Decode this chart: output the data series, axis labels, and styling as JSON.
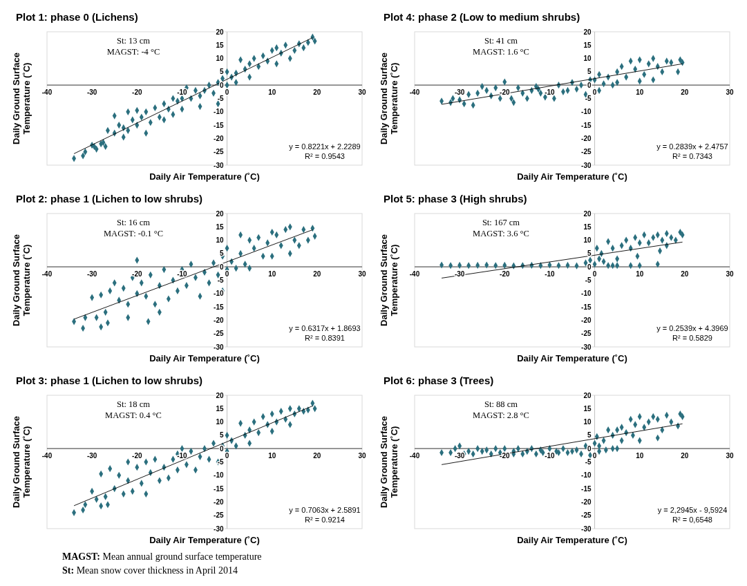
{
  "chart_data": [
    {
      "type": "scatter",
      "title": "Plot 1: phase 0 (Lichens)",
      "xlabel": "Daily Air Temperature (˚C)",
      "ylabel": "Daily Ground Surface Temperature (˚C)",
      "xlim": [
        -40,
        30
      ],
      "xticks": [
        -40,
        -30,
        -20,
        -10,
        0,
        10,
        20,
        30
      ],
      "ylim": [
        -30,
        20
      ],
      "yticks": [
        -30,
        -25,
        -20,
        -15,
        -10,
        -5,
        0,
        5,
        10,
        15,
        20
      ],
      "annotations": [
        "St: 13 cm",
        "MAGST: -4 °C",
        "y = 0.8221x + 2.2289",
        "R² = 0.9543"
      ],
      "series": [
        {
          "type": "scatter",
          "color": "#2b6f7e",
          "marker": "diamond",
          "x": [
            -34,
            -32,
            -31.5,
            -30,
            -29.5,
            -29,
            -28,
            -27.5,
            -27,
            -26.5,
            -25,
            -25,
            -24,
            -23,
            -23,
            -22,
            -22,
            -21,
            -20,
            -20,
            -19,
            -18,
            -18,
            -17,
            -16,
            -15,
            -14,
            -14,
            -13,
            -12,
            -12,
            -11,
            -10,
            -10,
            -9,
            -8,
            -7,
            -6,
            -6,
            -5,
            -4,
            -3,
            -2,
            -2,
            -1,
            0,
            0,
            1,
            2,
            2,
            3,
            4,
            5,
            5,
            6,
            7,
            8,
            9,
            10,
            11,
            11,
            12,
            13,
            14,
            15,
            16,
            17,
            18,
            19,
            19.5
          ],
          "values": [
            -27.5,
            -26.5,
            -25,
            -22.5,
            -23,
            -24,
            -22,
            -21.5,
            -23,
            -17,
            -11.5,
            -18,
            -15,
            -16,
            -19.5,
            -10,
            -17,
            -13,
            -9.5,
            -15,
            -12,
            -18,
            -10,
            -14,
            -8.5,
            -12,
            -7,
            -13,
            -9,
            -5,
            -11,
            -6,
            -9,
            -5,
            -1,
            -5,
            -2,
            -8,
            -4,
            -2,
            0,
            -3,
            -7,
            1,
            2.5,
            5,
            0,
            3,
            1,
            4.5,
            9.5,
            6,
            3,
            8,
            10,
            7,
            11,
            9,
            13,
            8,
            14,
            12,
            15,
            10,
            13,
            15.5,
            14,
            16,
            18,
            16.5
          ]
        },
        {
          "type": "line",
          "color": "#000000",
          "marker": "none",
          "x": [
            -34,
            19
          ],
          "values": [
            -25.7,
            17.8
          ]
        }
      ]
    },
    {
      "type": "scatter",
      "title": "Plot 4: phase 2 (Low to medium shrubs)",
      "xlabel": "Daily Air Temperature (˚C)",
      "ylabel": "Daily Ground Surface Temperature (˚C)",
      "xlim": [
        -40,
        30
      ],
      "xticks": [
        -40,
        -30,
        -20,
        -10,
        0,
        10,
        20,
        30
      ],
      "ylim": [
        -30,
        20
      ],
      "yticks": [
        -30,
        -25,
        -20,
        -15,
        -10,
        -5,
        0,
        5,
        10,
        15,
        20
      ],
      "annotations": [
        "St: 41 cm",
        "MAGST: 1.6 °C",
        "y = 0.2839x + 2.4757",
        "R² = 0.7343"
      ],
      "series": [
        {
          "type": "scatter",
          "color": "#2b6f7e",
          "marker": "diamond",
          "x": [
            -34,
            -32,
            -31.5,
            -30,
            -29,
            -28,
            -27,
            -26,
            -25,
            -24,
            -23,
            -22,
            -21,
            -20,
            -18.5,
            -18,
            -17,
            -16,
            -15,
            -14,
            -13,
            -12,
            -11,
            -12.5,
            -9,
            -8,
            -7,
            -6,
            -5,
            -4,
            -3,
            -2,
            -1,
            0,
            1,
            1,
            2,
            3,
            4,
            5,
            5,
            6,
            7,
            8,
            9,
            10,
            10,
            11,
            12,
            13,
            13,
            14,
            15,
            16,
            17,
            18.5,
            19,
            19.5
          ],
          "values": [
            -6,
            -6.5,
            -5,
            -5.5,
            -7,
            -3.5,
            -7.5,
            -3,
            -0.5,
            -2,
            -4,
            -1,
            -5,
            1.2,
            -5,
            -6.5,
            -1,
            -3,
            -5,
            -2,
            -0.5,
            -3,
            -4.5,
            -1.5,
            -5,
            0,
            -2.5,
            -2,
            1,
            -1.5,
            0,
            -3.5,
            2,
            2,
            -2,
            4,
            0.5,
            3,
            0,
            5,
            1,
            7,
            3,
            9,
            6,
            1.5,
            9.5,
            4,
            8,
            2,
            10,
            7,
            5,
            9,
            8.5,
            5,
            9.5,
            8.5
          ]
        },
        {
          "type": "line",
          "color": "#000000",
          "marker": "none",
          "x": [
            -34,
            19.5
          ],
          "values": [
            -7.2,
            8
          ]
        }
      ]
    },
    {
      "type": "scatter",
      "title": "Plot 2: phase 1 (Lichen to low shrubs)",
      "xlabel": "Daily Air Temperature (˚C)",
      "ylabel": "Daily Ground Surface Temperature (˚C)",
      "xlim": [
        -40,
        30
      ],
      "xticks": [
        -40,
        -30,
        -20,
        -10,
        0,
        10,
        20,
        30
      ],
      "ylim": [
        -30,
        20
      ],
      "yticks": [
        -30,
        -25,
        -20,
        -15,
        -10,
        -5,
        0,
        5,
        10,
        15,
        20
      ],
      "annotations": [
        "St: 16 cm",
        "MAGST: -0.1 °C",
        "y = 0.6317x + 1.8693",
        "R² = 0.8391"
      ],
      "series": [
        {
          "type": "scatter",
          "color": "#2b6f7e",
          "marker": "diamond",
          "x": [
            -34,
            -32,
            -31.5,
            -30,
            -29,
            -28,
            -28,
            -27,
            -26.5,
            -26,
            -25,
            -24,
            -23,
            -22,
            -22,
            -21,
            -20,
            -20,
            -19,
            -18,
            -17.5,
            -17,
            -16,
            -15,
            -15,
            -14,
            -13,
            -12,
            -11,
            -10,
            -9,
            -8,
            -7,
            -6,
            -5,
            -4,
            -3,
            -2,
            -1,
            -1,
            0,
            0,
            1,
            2,
            3,
            3,
            4,
            5,
            5,
            6,
            7,
            8,
            9,
            10,
            10,
            11,
            12,
            13,
            14,
            14,
            15,
            16,
            17,
            18,
            19,
            19.5
          ],
          "values": [
            -20.5,
            -23,
            -19,
            -11.5,
            -19,
            -10.5,
            -22.5,
            -17,
            -21,
            -9,
            -6,
            -12.5,
            -8,
            -19,
            -14,
            -4,
            -10,
            2.5,
            -6,
            -11,
            -20.5,
            -3,
            -14,
            -17,
            -7,
            -1,
            -12,
            -5,
            -9,
            -1,
            -7,
            1,
            -4,
            -11,
            -2,
            -6,
            1.5,
            -3,
            -9,
            4,
            -1,
            7,
            2,
            -0.5,
            12,
            5,
            1,
            10,
            -0.5,
            7,
            11,
            4,
            9,
            13,
            4,
            12,
            8,
            14,
            5,
            15,
            10,
            8,
            14,
            10,
            14.5,
            11.5
          ]
        },
        {
          "type": "line",
          "color": "#000000",
          "marker": "none",
          "x": [
            -34,
            19
          ],
          "values": [
            -19.6,
            13.9
          ]
        }
      ]
    },
    {
      "type": "scatter",
      "title": "Plot 5: phase 3 (High shrubs)",
      "xlabel": "Daily Air Temperature (˚C)",
      "ylabel": "Daily Ground Surface Temperature (˚C)",
      "xlim": [
        -40,
        30
      ],
      "xticks": [
        -40,
        -30,
        -20,
        -10,
        0,
        10,
        20,
        30
      ],
      "ylim": [
        -30,
        20
      ],
      "yticks": [
        -30,
        -25,
        -20,
        -15,
        -10,
        -5,
        0,
        5,
        10,
        15,
        20
      ],
      "annotations": [
        "St: 167 cm",
        "MAGST: 3.6 °C",
        "y = 0.2539x + 4.3969",
        "R² = 0.5829"
      ],
      "series": [
        {
          "type": "scatter",
          "color": "#2b6f7e",
          "marker": "diamond",
          "x": [
            -34,
            -32,
            -30,
            -28,
            -26,
            -24,
            -22,
            -20,
            -18,
            -16,
            -14,
            -12,
            -10,
            -8,
            -6,
            -4,
            -2,
            -1,
            0,
            0.5,
            1,
            1.5,
            2,
            3,
            3,
            4,
            4,
            5,
            5,
            6,
            7,
            8,
            8,
            9,
            9.5,
            10,
            10,
            11,
            12,
            13,
            14,
            14,
            14.5,
            15,
            16,
            16,
            17,
            18,
            19,
            19.5
          ],
          "values": [
            0.7,
            0.5,
            0.6,
            0.5,
            0.6,
            0.7,
            0.5,
            0.6,
            0.4,
            0.5,
            0.6,
            0.5,
            0.7,
            0.5,
            0.6,
            0.4,
            1.5,
            2.5,
            1,
            7,
            3,
            5,
            2,
            9.5,
            0.5,
            7,
            0.5,
            3,
            0.5,
            8,
            10,
            7,
            0.5,
            11,
            4,
            9,
            0.5,
            12,
            9,
            11,
            1,
            12,
            6,
            10,
            8,
            12.5,
            11,
            10,
            13,
            12
          ]
        },
        {
          "type": "line",
          "color": "#000000",
          "marker": "none",
          "x": [
            -34,
            19.5
          ],
          "values": [
            -4.2,
            9.3
          ]
        }
      ]
    },
    {
      "type": "scatter",
      "title": "Plot 3: phase 1 (Lichen to low shrubs)",
      "xlabel": "Daily Air Temperature (˚C)",
      "ylabel": "Daily Ground Surface Temperature (˚C)",
      "xlim": [
        -40,
        30
      ],
      "xticks": [
        -40,
        -30,
        -20,
        -10,
        0,
        10,
        20,
        30
      ],
      "ylim": [
        -30,
        20
      ],
      "yticks": [
        -30,
        -25,
        -20,
        -15,
        -10,
        -5,
        0,
        5,
        10,
        15,
        20
      ],
      "annotations": [
        "St: 18 cm",
        "MAGST: 0.4 °C",
        "y = 0.7063x + 2.5891",
        "R² = 0.9214",
        "MAGST: Mean annual ground surface temperature",
        "St: Mean snow cover thickness in April 2014"
      ],
      "series": [
        {
          "type": "scatter",
          "color": "#2b6f7e",
          "marker": "diamond",
          "x": [
            -34,
            -32,
            -31.5,
            -30,
            -29,
            -28,
            -28,
            -27,
            -26.5,
            -26,
            -25,
            -24,
            -23,
            -22,
            -22,
            -21,
            -20,
            -19,
            -18,
            -18,
            -17,
            -16,
            -15,
            -14,
            -13,
            -12,
            -11,
            -11,
            -10,
            -9,
            -8,
            -7,
            -6,
            -5,
            -4,
            -3,
            -2,
            -1,
            0,
            0,
            1,
            2,
            3,
            4,
            5,
            5,
            6,
            7,
            8,
            9,
            10,
            10,
            11,
            12,
            13,
            14,
            14,
            15,
            16,
            17,
            18,
            19,
            19.5
          ],
          "values": [
            -24,
            -23,
            -21,
            -16,
            -19,
            -9.5,
            -21.5,
            -18,
            -21,
            -7.5,
            -15,
            -10,
            -17,
            -5,
            -12,
            -16,
            -7,
            -13,
            -17,
            -5,
            -9,
            -4,
            -12,
            -7,
            -11,
            -4,
            -2,
            -8,
            0,
            -6,
            -1,
            -8,
            -3,
            0,
            -4,
            2,
            -5,
            1,
            5,
            -1,
            3,
            1,
            9.5,
            5,
            2,
            7,
            10,
            6,
            12,
            9,
            13,
            6.5,
            10,
            14,
            11,
            9,
            15,
            13,
            15,
            14,
            14.5,
            17,
            15
          ]
        },
        {
          "type": "line",
          "color": "#000000",
          "marker": "none",
          "x": [
            -34,
            19
          ],
          "values": [
            -21.4,
            16
          ]
        }
      ]
    },
    {
      "type": "scatter",
      "title": "Plot 6: phase 3 (Trees)",
      "xlabel": "Daily Air Temperature (˚C)",
      "ylabel": "Daily Ground Surface Temperature (˚C)",
      "xlim": [
        -40,
        30
      ],
      "xticks": [
        -40,
        -30,
        -20,
        -10,
        0,
        10,
        20,
        30
      ],
      "ylim": [
        -30,
        20
      ],
      "yticks": [
        -30,
        -25,
        -20,
        -15,
        -10,
        -5,
        0,
        5,
        10,
        15,
        20
      ],
      "annotations": [
        "St: 88 cm",
        "MAGST: 2.8 °C",
        "y = 2,2945x - 9,5924",
        "R² = 0,6548"
      ],
      "series": [
        {
          "type": "scatter",
          "color": "#2b6f7e",
          "marker": "diamond",
          "x": [
            -34,
            -32,
            -31,
            -30,
            -29,
            -28,
            -27,
            -26,
            -25,
            -24,
            -23,
            -22,
            -21,
            -20,
            -18,
            -18,
            -17,
            -16,
            -15,
            -14,
            -13,
            -12,
            -11.5,
            -10,
            -8.5,
            -8,
            -7,
            -6,
            -5,
            -4,
            -3,
            -2,
            -1,
            0,
            1,
            0.5,
            1,
            2,
            2.5,
            3,
            4,
            4,
            5,
            5,
            6,
            6,
            7,
            8,
            8.5,
            9,
            10,
            10,
            11,
            12,
            13,
            14,
            14,
            15,
            16,
            17,
            18.5,
            19,
            19.5
          ],
          "values": [
            -1.5,
            -1.5,
            0,
            1,
            -2,
            -1,
            -2,
            0,
            -1,
            -0.5,
            -2,
            0,
            -1.5,
            0,
            -2,
            -1,
            0,
            -2,
            -1,
            0,
            -2,
            -0.5,
            -1.5,
            0,
            -1,
            -1.5,
            0,
            -1.5,
            -1,
            -0.5,
            -2,
            1,
            -2.5,
            2,
            -1,
            4.5,
            1,
            3,
            -0.5,
            7,
            0,
            5,
            0,
            7,
            3,
            8,
            6,
            11,
            5,
            9,
            12,
            3,
            8,
            10,
            12,
            4,
            11,
            7,
            12.5,
            10,
            8.5,
            13,
            12
          ]
        },
        {
          "type": "line",
          "color": "#000000",
          "marker": "none",
          "x": [
            -34,
            19.5
          ],
          "values": [
            -6,
            9.3
          ]
        }
      ]
    }
  ]
}
